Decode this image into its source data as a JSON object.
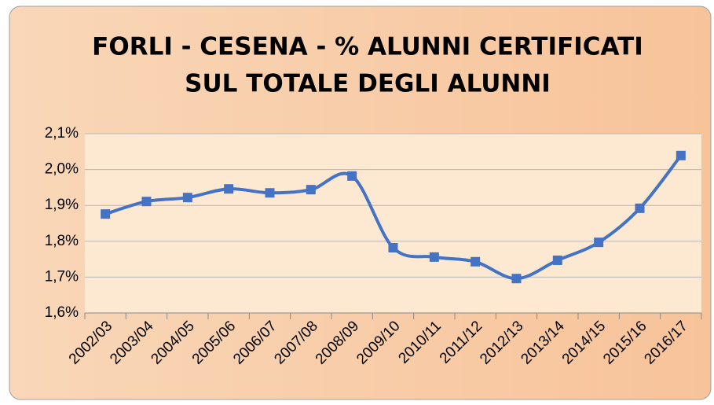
{
  "chart_data": {
    "type": "line",
    "title": [
      "FORLI - CESENA - % ALUNNI CERTIFICATI",
      "SUL TOTALE DEGLI ALUNNI"
    ],
    "categories": [
      "2002/03",
      "2003/04",
      "2004/05",
      "2005/06",
      "2006/07",
      "2007/08",
      "2008/09",
      "2009/10",
      "2010/11",
      "2011/12",
      "2012/13",
      "2013/14",
      "2014/15",
      "2015/16",
      "2016/17"
    ],
    "values": [
      1.876,
      1.911,
      1.922,
      1.946,
      1.935,
      1.944,
      1.982,
      1.782,
      1.756,
      1.743,
      1.696,
      1.747,
      1.797,
      1.892,
      2.039
    ],
    "color": "#4472c4",
    "ylim": [
      1.6,
      2.1
    ],
    "yticks": [
      {
        "value": 1.6,
        "label": "1,6%"
      },
      {
        "value": 1.7,
        "label": "1,7%"
      },
      {
        "value": 1.8,
        "label": "1,8%"
      },
      {
        "value": 1.9,
        "label": "1,9%"
      },
      {
        "value": 2.0,
        "label": "2,0%"
      },
      {
        "value": 2.1,
        "label": "2,1%"
      }
    ],
    "grid": true,
    "smooth": true
  }
}
